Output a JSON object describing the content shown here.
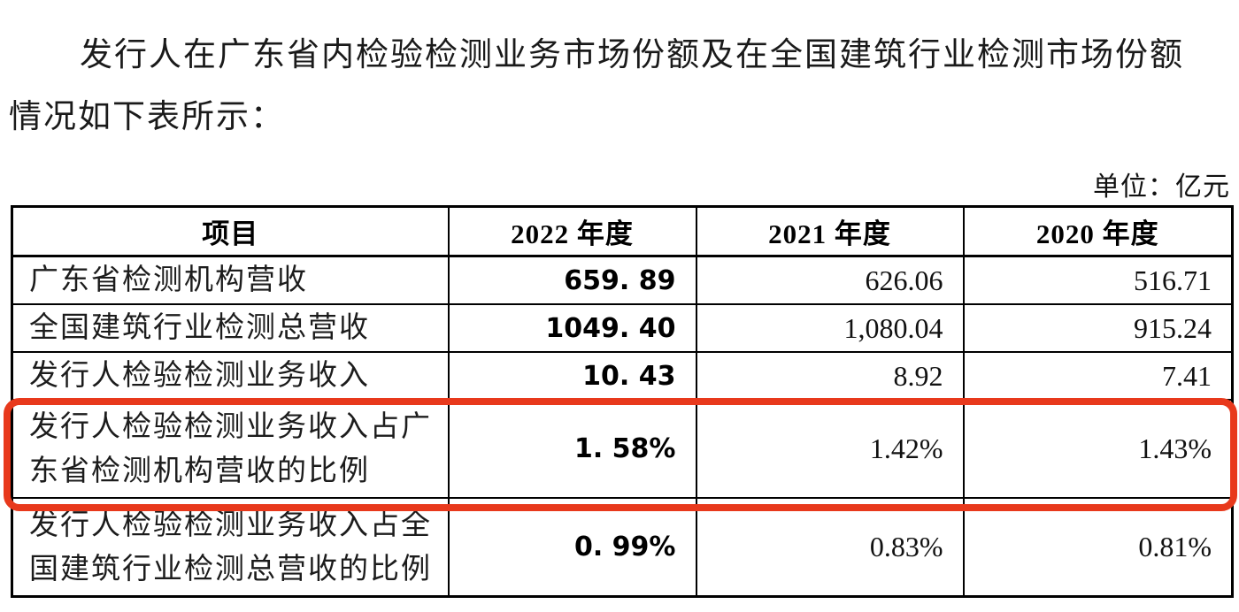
{
  "intro": {
    "lines": [
      "发行人在广东省内检验检测业务市场份额及在全国建筑行业检测市场份额",
      "情况如下表所示："
    ]
  },
  "unit_label": "单位：亿元",
  "table": {
    "headers": [
      "项目",
      "2022 年度",
      "2021 年度",
      "2020 年度"
    ],
    "rows": [
      {
        "label": "广东省检测机构营收",
        "y2022": "659. 89",
        "y2021": "626.06",
        "y2020": "516.71",
        "highlighted": false
      },
      {
        "label": "全国建筑行业检测总营收",
        "y2022": "1049. 40",
        "y2021": "1,080.04",
        "y2020": "915.24",
        "highlighted": false
      },
      {
        "label": "发行人检验检测业务收入",
        "y2022": "10. 43",
        "y2021": "8.92",
        "y2020": "7.41",
        "highlighted": false
      },
      {
        "label": "发行人检验检测业务收入占广东省检测机构营收的比例",
        "y2022": "1. 58%",
        "y2021": "1.42%",
        "y2020": "1.43%",
        "highlighted": true
      },
      {
        "label": "发行人检验检测业务收入占全国建筑行业检测总营收的比例",
        "y2022": "0. 99%",
        "y2021": "0.83%",
        "y2020": "0.81%",
        "highlighted": false
      }
    ]
  },
  "highlight": {
    "color": "#e8391c",
    "highlighted_row_label": "发行人检验检测业务收入占广东省检测机构营收的比例"
  }
}
